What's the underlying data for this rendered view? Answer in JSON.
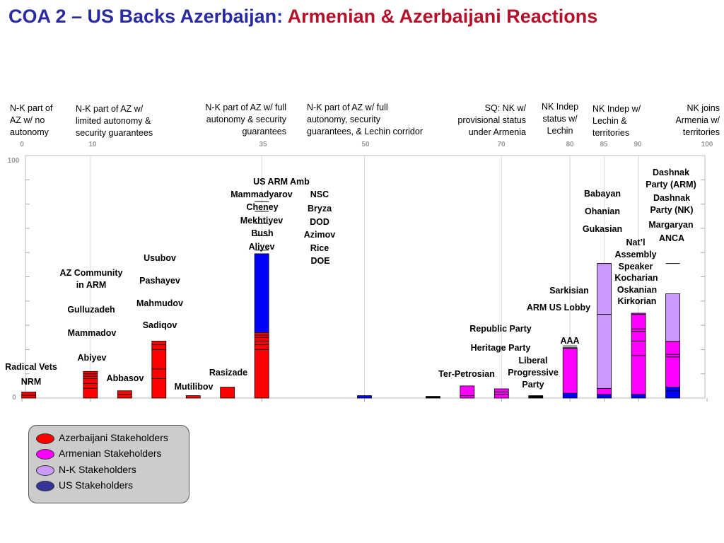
{
  "title": {
    "part1": "COA 2 – US Backs Azerbaijan:",
    "part2": "Armenian & Azerbaijani Reactions",
    "part1_color": "#2a2aa0",
    "part2_color": "#b3122a"
  },
  "positions": [
    {
      "text": "N-K part of\nAZ w/ no\nautonomy"
    },
    {
      "text": "N-K part of AZ w/\nlimited autonomy &\nsecurity guarantees"
    },
    {
      "text": "N-K part of AZ w/ full\nautonomy & security\nguarantees"
    },
    {
      "text": "N-K part of AZ w/ full\nautonomy, security\nguarantees, & Lechin corridor"
    },
    {
      "text": "SQ: NK w/\nprovisional status\nunder Armenia"
    },
    {
      "text": "NK Indep\nstatus w/\nLechin"
    },
    {
      "text": "NK Indep w/\nLechin &\nterritories"
    },
    {
      "text": "NK joins\nArmenia w/\nterritories"
    }
  ],
  "colors": {
    "azerbaijani": "#ff0000",
    "armenian": "#ff00ff",
    "nk": "#cc99ff",
    "us": "#0000ff",
    "dark": "#000000"
  },
  "chart_data": {
    "type": "bar",
    "x_ticks": [
      0,
      10,
      35,
      50,
      70,
      80,
      85,
      90,
      100
    ],
    "y_ticks": [
      0,
      100
    ],
    "xlim": [
      0,
      100
    ],
    "ylim": [
      0,
      100
    ],
    "bars": [
      {
        "x": 1,
        "segments": [
          {
            "group": "azerbaijani",
            "value": 2.5,
            "lines": [
              1.2
            ]
          }
        ],
        "labels": [
          "Radical Vets",
          "NRM"
        ]
      },
      {
        "x": 10,
        "segments": [
          {
            "group": "azerbaijani",
            "value": 11,
            "lines": [
              4,
              6,
              8,
              9,
              10
            ]
          }
        ],
        "labels": [
          "AZ Community\nin ARM",
          "Gulluzadeh",
          "Mammadov",
          "Abiyev"
        ]
      },
      {
        "x": 15,
        "segments": [
          {
            "group": "azerbaijani",
            "value": 3,
            "lines": [
              1.5
            ]
          }
        ],
        "labels": [
          "Abbasov"
        ]
      },
      {
        "x": 20,
        "segments": [
          {
            "group": "azerbaijani",
            "value": 23.5,
            "lines": [
              8,
              12,
              20,
              22
            ]
          }
        ],
        "labels": [
          "Usubov",
          "Pashayev",
          "Mahmudov",
          "Sadiqov"
        ]
      },
      {
        "x": 25,
        "segments": [
          {
            "group": "azerbaijani",
            "value": 1
          }
        ],
        "labels": [
          "Mutilibov"
        ]
      },
      {
        "x": 30,
        "segments": [
          {
            "group": "azerbaijani",
            "value": 4.5
          }
        ],
        "labels": [
          "Rasizade"
        ]
      },
      {
        "x": 35,
        "segments": [
          {
            "group": "azerbaijani",
            "value": 27,
            "lines": [
              20,
              22,
              23.5,
              25,
              26
            ]
          },
          {
            "group": "us",
            "value": 32.5,
            "lines": [
              34,
              40,
              45,
              50,
              54
            ]
          }
        ],
        "labels": [
          "US ARM Amb",
          "Mammadyarov",
          "Cheney",
          "Mekhtiyev",
          "Bush",
          "Aliyev",
          "NSC",
          "Bryza",
          "DOD",
          "Azimov",
          "Rice",
          "DOE"
        ]
      },
      {
        "x": 50,
        "segments": [
          {
            "group": "us",
            "value": 1
          }
        ],
        "labels": []
      },
      {
        "x": 60,
        "segments": [
          {
            "group": "dark",
            "value": 0.7
          }
        ],
        "labels": []
      },
      {
        "x": 65,
        "segments": [
          {
            "group": "armenian",
            "value": 5,
            "lines": [
              1
            ]
          }
        ],
        "labels": [
          "Ter-Petrosian"
        ]
      },
      {
        "x": 70,
        "segments": [
          {
            "group": "armenian",
            "value": 3.8,
            "lines": [
              1.5,
              2.5
            ]
          }
        ],
        "labels": [
          "Republic Party",
          "Heritage Party",
          "Liberal\nProgressive\nParty"
        ]
      },
      {
        "x": 75,
        "segments": [
          {
            "group": "dark",
            "value": 1
          }
        ],
        "labels": []
      },
      {
        "x": 80,
        "segments": [
          {
            "group": "us",
            "value": 2
          },
          {
            "group": "armenian",
            "value": 18.8,
            "lines": [
              18.5,
              19.5
            ]
          }
        ],
        "labels": [
          "AAA",
          "Sarkisian",
          "ARM US Lobby"
        ]
      },
      {
        "x": 85,
        "segments": [
          {
            "group": "us",
            "value": 1.5
          },
          {
            "group": "armenian",
            "value": 2.5
          },
          {
            "group": "nk",
            "value": 51.5,
            "lines": [
              30.5,
              51.5
            ]
          }
        ],
        "labels": [
          "Babayan",
          "Ohanian",
          "Gukasian"
        ]
      },
      {
        "x": 90,
        "segments": [
          {
            "group": "us",
            "value": 1.5
          },
          {
            "group": "armenian",
            "value": 33.5,
            "lines": [
              16,
              22,
              26,
              27,
              33
            ]
          }
        ],
        "labels": [
          "Nat’l\nAssembly\nSpeaker",
          "Kocharian",
          "Oskanian",
          "Kirkorian"
        ]
      },
      {
        "x": 95,
        "segments": [
          {
            "group": "us",
            "value": 4.5,
            "lines": [
              3
            ]
          },
          {
            "group": "armenian",
            "value": 19,
            "lines": [
              12.5,
              13.5
            ]
          },
          {
            "group": "nk",
            "value": 19.5,
            "lines": [
              32
            ]
          }
        ],
        "labels": [
          "Dashnak\nParty (ARM)",
          "Dashnak\nParty (NK)",
          "Margaryan",
          "ANCA"
        ]
      }
    ]
  },
  "legend": {
    "items": [
      {
        "label": "Azerbaijani Stakeholders",
        "color": "#ff0000"
      },
      {
        "label": "Armenian Stakeholders",
        "color": "#ff00ff"
      },
      {
        "label": "N-K Stakeholders",
        "color": "#cc99ff"
      },
      {
        "label": "US Stakeholders",
        "color": "#333399"
      }
    ]
  }
}
